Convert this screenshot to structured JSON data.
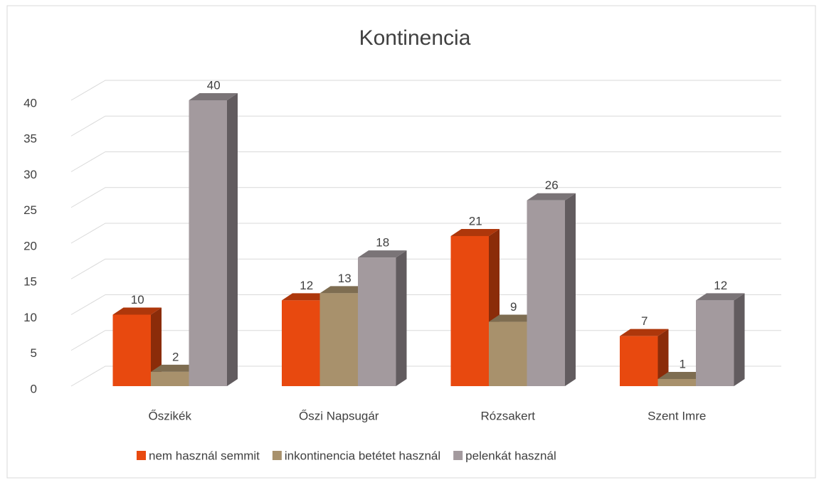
{
  "chart_data": {
    "type": "bar3d",
    "title": "Kontinencia",
    "categories": [
      "Őszikék",
      "Őszi Napsugár",
      "Rózsakert",
      "Szent Imre"
    ],
    "series": [
      {
        "name": "nem használ semmit",
        "color": "#e8490f",
        "values": [
          10,
          12,
          21,
          7
        ]
      },
      {
        "name": "inkontinencia betétet használ",
        "color": "#a8916c",
        "values": [
          2,
          13,
          9,
          1
        ]
      },
      {
        "name": "pelenkát használ",
        "color": "#a39a9e",
        "values": [
          40,
          18,
          26,
          12
        ]
      }
    ],
    "ylim": [
      0,
      40
    ],
    "yticks": [
      0,
      5,
      10,
      15,
      20,
      25,
      30,
      35,
      40
    ],
    "grid": true,
    "legend": "bottom"
  }
}
